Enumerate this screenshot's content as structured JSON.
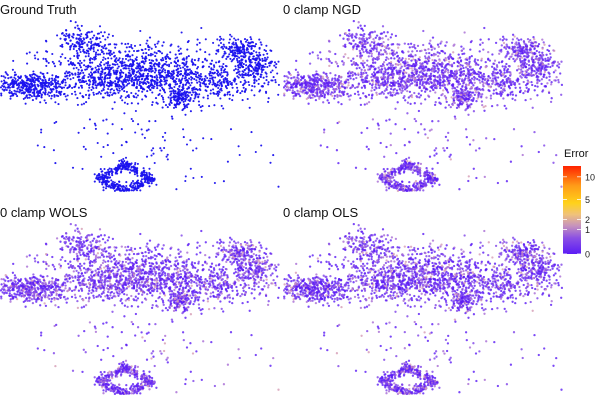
{
  "panels": [
    {
      "title": "Ground Truth",
      "mode": "truth"
    },
    {
      "title": "0 clamp NGD",
      "mode": "error"
    },
    {
      "title": "0 clamp WOLS",
      "mode": "error"
    },
    {
      "title": "0 clamp OLS",
      "mode": "error"
    }
  ],
  "legend": {
    "title": "Error",
    "ticks": [
      "10",
      "5",
      "2",
      "1",
      "0"
    ],
    "scale": "sqrt",
    "range": [
      0,
      13
    ]
  },
  "colors": {
    "truth": "#1a12ee",
    "scale": [
      "#5b1cf5",
      "#7f44e8",
      "#a76bd4",
      "#d59bb4",
      "#ffd21a",
      "#ffa018",
      "#ff5a10",
      "#ff2200"
    ]
  },
  "chart_data": {
    "type": "scatter",
    "series": [
      {
        "name": "Ground Truth",
        "values": []
      },
      {
        "name": "0 clamp NGD",
        "values": []
      },
      {
        "name": "0 clamp WOLS",
        "values": []
      },
      {
        "name": "0 clamp OLS",
        "values": []
      }
    ]
  }
}
